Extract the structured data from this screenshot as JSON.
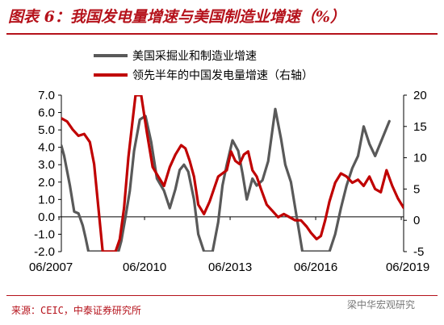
{
  "title": "图表 6：我国发电量增速与美国制造业增速（%）",
  "source": "来源：CEIC，中泰证券研究所",
  "watermark": "梁中华宏观研究",
  "chart_data": {
    "type": "line",
    "title": "图表 6：我国发电量增速与美国制造业增速（%）",
    "x_ticks": [
      "06/2007",
      "06/2010",
      "06/2013",
      "06/2016",
      "06/2019"
    ],
    "x_range": [
      2007.5,
      2019.5
    ],
    "y_left": {
      "ticks": [
        "7.0",
        "6.0",
        "5.0",
        "4.0",
        "3.0",
        "2.0",
        "1.0",
        "0.0",
        "-1.0",
        "-2.0"
      ],
      "range": [
        -2.0,
        7.0
      ]
    },
    "y_right": {
      "ticks": [
        "20",
        "15",
        "10",
        "5",
        "0",
        "-5"
      ],
      "range": [
        -5,
        20
      ]
    },
    "grid": false,
    "legend_position": "top",
    "series": [
      {
        "name": "美国采掘业和制造业增速",
        "axis": "left",
        "color": "#595959",
        "x": [
          2007.5,
          2007.6,
          2007.8,
          2007.95,
          2008.1,
          2008.25,
          2008.35,
          2008.45,
          2008.6,
          2009.5,
          2009.6,
          2009.75,
          2009.9,
          2010.05,
          2010.25,
          2010.45,
          2010.65,
          2010.85,
          2011.1,
          2011.3,
          2011.5,
          2011.65,
          2011.8,
          2011.95,
          2012.15,
          2012.3,
          2012.5,
          2012.65,
          2012.8,
          2013.0,
          2013.15,
          2013.3,
          2013.5,
          2013.7,
          2013.85,
          2014.0,
          2014.2,
          2014.35,
          2014.55,
          2014.75,
          2015.0,
          2015.2,
          2015.35,
          2015.55,
          2015.75,
          2015.95,
          2016.2,
          2016.45,
          2016.7,
          2016.9,
          2017.1,
          2017.3,
          2017.5,
          2017.7,
          2017.9,
          2018.1,
          2018.3,
          2018.5,
          2018.75,
          2019.0
        ],
        "values": [
          4.1,
          3.5,
          1.8,
          0.3,
          0.2,
          -0.5,
          -1.2,
          -2.0,
          -2.0,
          -2.0,
          -1.4,
          0.0,
          1.5,
          3.8,
          5.6,
          5.8,
          4.3,
          2.2,
          1.5,
          0.5,
          1.6,
          2.7,
          3.0,
          2.6,
          1.0,
          -1.0,
          -2.0,
          -2.0,
          -2.0,
          -0.3,
          1.8,
          3.0,
          4.4,
          3.8,
          2.5,
          1.0,
          2.2,
          1.8,
          2.1,
          3.2,
          6.2,
          4.5,
          3.0,
          2.0,
          0.0,
          -2.0,
          -2.0,
          -2.0,
          -2.0,
          -2.0,
          -1.0,
          0.5,
          1.8,
          2.8,
          3.5,
          5.2,
          4.2,
          3.5,
          4.5,
          5.5
        ]
      },
      {
        "name": "领先半年的中国发电量增速（右轴）",
        "axis": "right",
        "color": "#c00000",
        "x": [
          2007.5,
          2007.7,
          2007.9,
          2008.1,
          2008.3,
          2008.5,
          2008.65,
          2008.8,
          2008.95,
          2009.1,
          2009.25,
          2009.4,
          2009.55,
          2009.7,
          2009.85,
          2010.0,
          2010.1,
          2010.3,
          2010.5,
          2010.7,
          2010.9,
          2011.1,
          2011.3,
          2011.5,
          2011.7,
          2011.85,
          2012.0,
          2012.15,
          2012.3,
          2012.5,
          2012.7,
          2012.85,
          2013.0,
          2013.15,
          2013.3,
          2013.45,
          2013.6,
          2013.75,
          2013.9,
          2014.05,
          2014.2,
          2014.35,
          2014.5,
          2014.7,
          2014.9,
          2015.1,
          2015.3,
          2015.5,
          2015.7,
          2015.9,
          2016.1,
          2016.25,
          2016.45,
          2016.6,
          2016.75,
          2016.9,
          2017.1,
          2017.3,
          2017.5,
          2017.7,
          2017.9,
          2018.1,
          2018.3,
          2018.5,
          2018.7,
          2018.9,
          2019.1,
          2019.3,
          2019.5
        ],
        "values": [
          16.3,
          15.8,
          14.5,
          13.5,
          13.8,
          12.5,
          9.0,
          2.0,
          -5.0,
          -5.0,
          -5.0,
          -5.0,
          -3.0,
          2.0,
          10.0,
          16.0,
          20.0,
          20.0,
          14.0,
          8.5,
          7.0,
          5.5,
          8.5,
          10.5,
          12.0,
          11.5,
          9.5,
          7.0,
          2.5,
          1.0,
          3.0,
          5.0,
          7.0,
          7.5,
          8.0,
          11.0,
          9.5,
          9.0,
          10.5,
          11.0,
          8.0,
          7.0,
          5.0,
          2.5,
          1.5,
          0.5,
          1.0,
          0.5,
          0.0,
          0.0,
          -1.0,
          -2.0,
          -3.0,
          -2.5,
          0.0,
          3.0,
          6.0,
          7.5,
          7.0,
          6.0,
          6.5,
          5.5,
          7.0,
          5.0,
          4.5,
          8.0,
          5.5,
          3.5,
          2.0
        ]
      }
    ]
  }
}
